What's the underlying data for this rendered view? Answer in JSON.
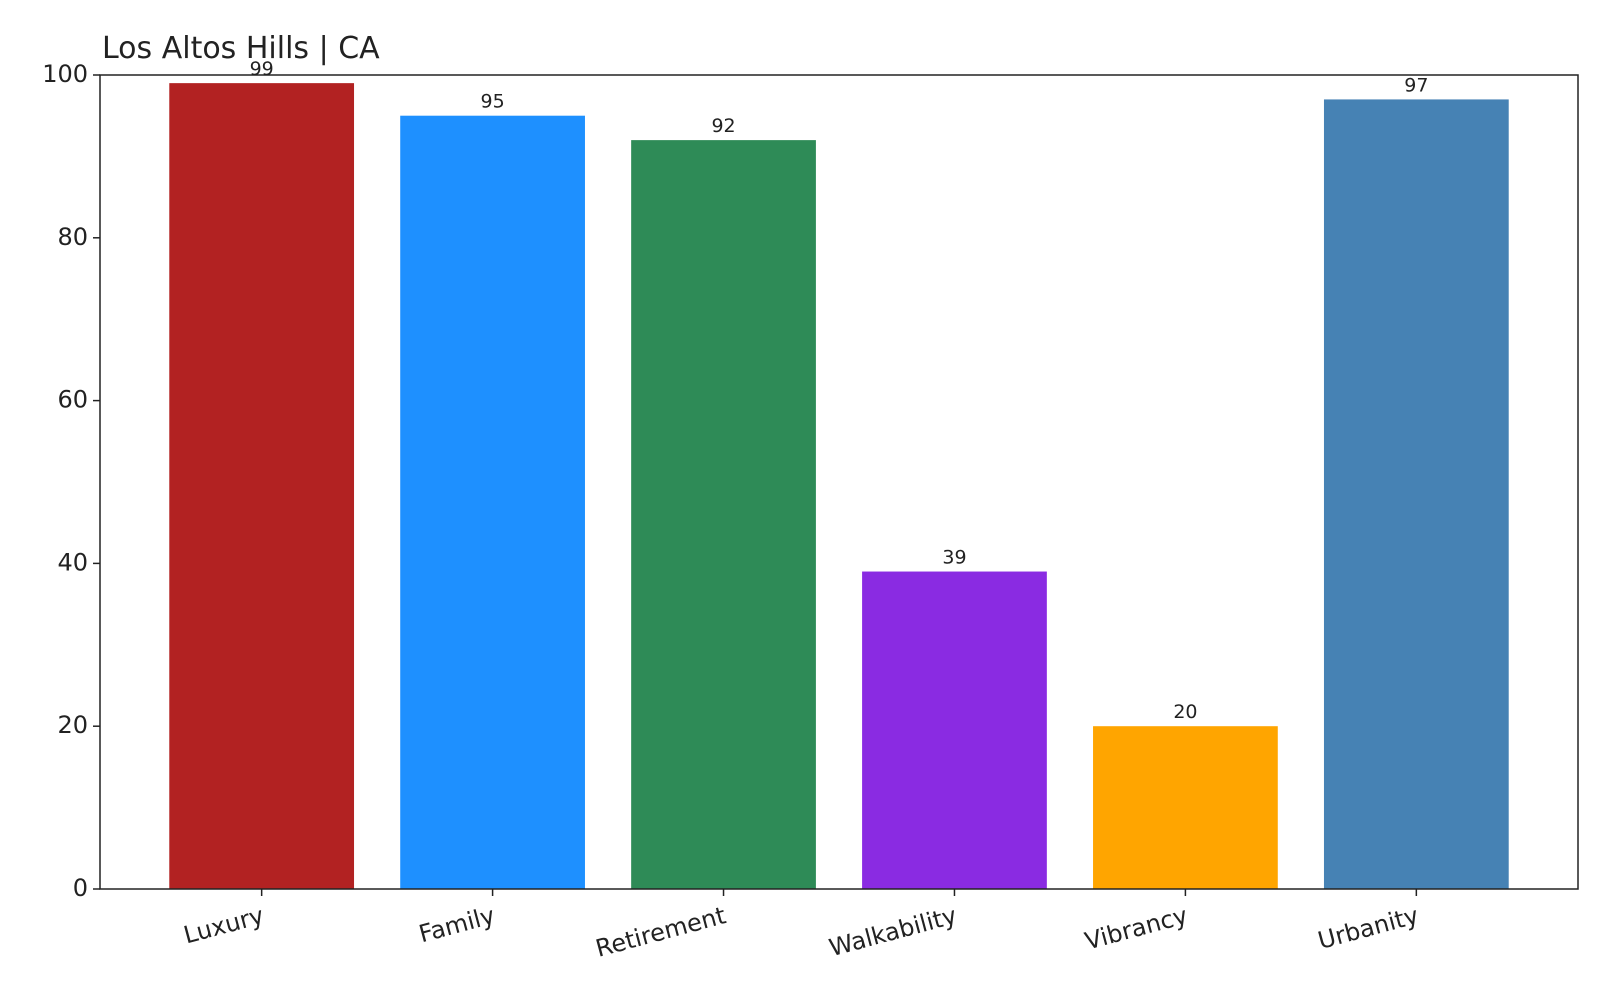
{
  "chart_data": {
    "type": "bar",
    "title": "Los Altos Hills | CA",
    "categories": [
      "Luxury",
      "Family",
      "Retirement",
      "Walkability",
      "Vibrancy",
      "Urbanity"
    ],
    "values": [
      99,
      95,
      92,
      39,
      20,
      97
    ],
    "colors": [
      "#b22222",
      "#1e90ff",
      "#2e8b57",
      "#8a2be2",
      "#ffa500",
      "#4682b4"
    ],
    "ylim": [
      0,
      100
    ],
    "yticks": [
      0,
      20,
      40,
      60,
      80,
      100
    ],
    "grid": false
  }
}
